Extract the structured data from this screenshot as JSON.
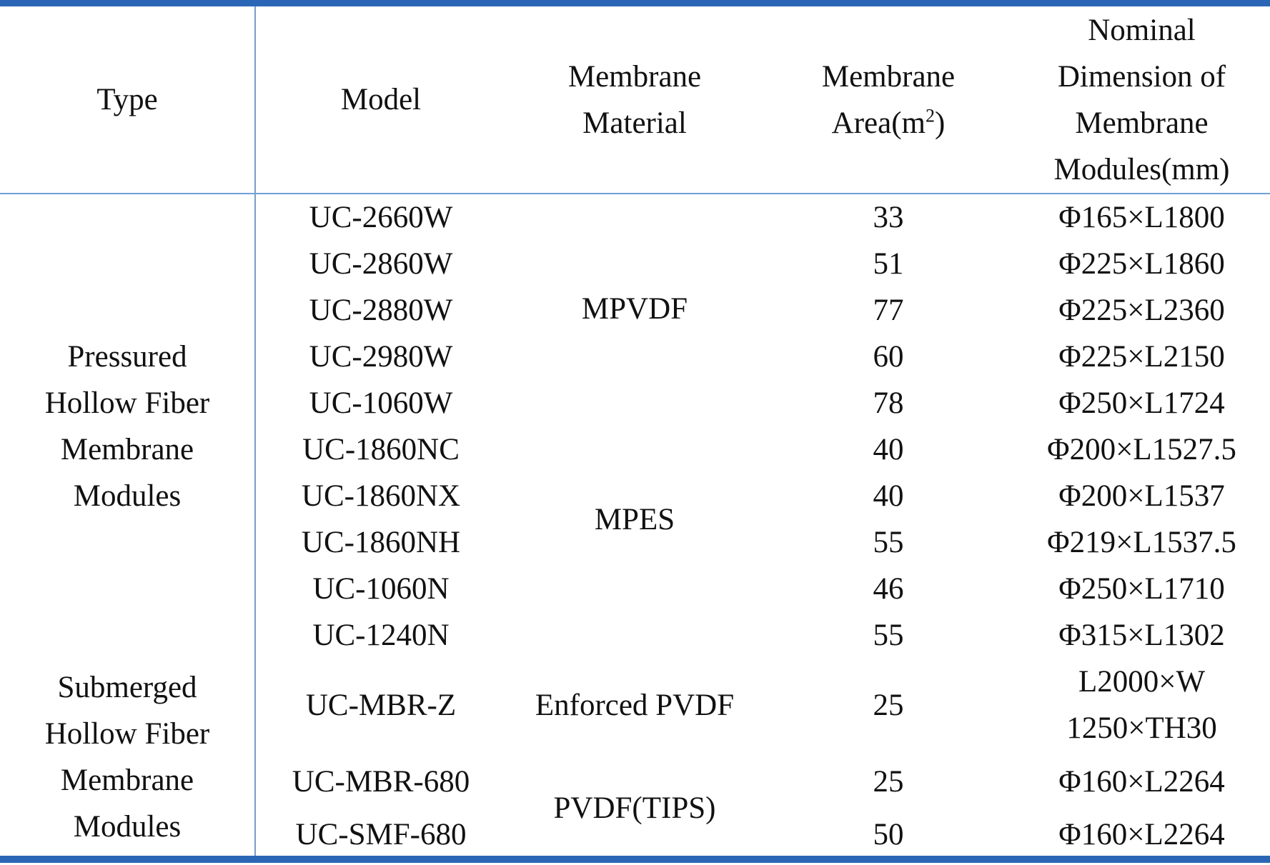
{
  "table": {
    "headers": {
      "type": "Type",
      "model": "Model",
      "material_l1": "Membrane",
      "material_l2": "Material",
      "area_l1": "Membrane",
      "area_l2_pre": "Area(m",
      "area_l2_sup": "2",
      "area_l2_post": ")",
      "dim_l1": "Nominal",
      "dim_l2": "Dimension of",
      "dim_l3": "Membrane",
      "dim_l4": "Modules(mm)"
    },
    "groups": [
      {
        "type_lines": [
          "Pressured",
          "Hollow Fiber",
          "Membrane",
          "Modules"
        ]
      },
      {
        "type_lines": [
          "Submerged",
          "Hollow Fiber",
          "Membrane",
          "Modules"
        ]
      }
    ],
    "materials": [
      "MPVDF",
      "MPES",
      "Enforced PVDF",
      "PVDF(TIPS)"
    ],
    "rows": [
      {
        "model": "UC-2660W",
        "area": "33",
        "dimension": "Φ165×L1800"
      },
      {
        "model": "UC-2860W",
        "area": "51",
        "dimension": "Φ225×L1860"
      },
      {
        "model": "UC-2880W",
        "area": "77",
        "dimension": "Φ225×L2360"
      },
      {
        "model": "UC-2980W",
        "area": "60",
        "dimension": "Φ225×L2150"
      },
      {
        "model": "UC-1060W",
        "area": "78",
        "dimension": "Φ250×L1724"
      },
      {
        "model": "UC-1860NC",
        "area": "40",
        "dimension": "Φ200×L1527.5"
      },
      {
        "model": "UC-1860NX",
        "area": "40",
        "dimension": "Φ200×L1537"
      },
      {
        "model": "UC-1860NH",
        "area": "55",
        "dimension": "Φ219×L1537.5"
      },
      {
        "model": "UC-1060N",
        "area": "46",
        "dimension": "Φ250×L1710"
      },
      {
        "model": "UC-1240N",
        "area": "55",
        "dimension": "Φ315×L1302"
      },
      {
        "model": "UC-MBR-Z",
        "area": "25",
        "dimension_l1": "L2000×W",
        "dimension_l2": "1250×TH30"
      },
      {
        "model": "UC-MBR-680",
        "area": "25",
        "dimension": "Φ160×L2264"
      },
      {
        "model": "UC-SMF-680",
        "area": "50",
        "dimension": "Φ160×L2264"
      }
    ]
  },
  "colors": {
    "border_dark": "#2a66b5",
    "border_light": "#6fa0d8",
    "text": "#111111"
  }
}
